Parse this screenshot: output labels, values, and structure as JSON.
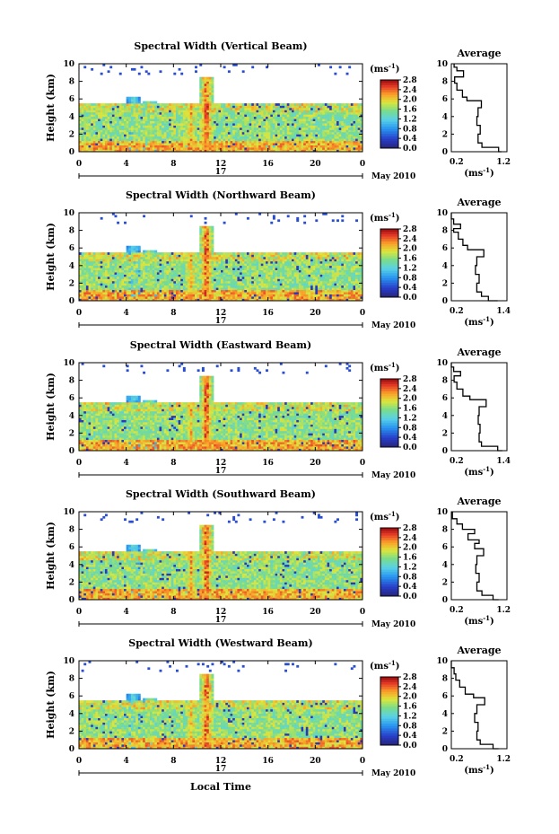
{
  "chart_data": {
    "type": "heatmap",
    "panels": [
      {
        "title": "Spectral Width (Vertical Beam)",
        "avg_xticks": [
          "0.2",
          "1.2"
        ],
        "avg_xlim": [
          0.2,
          1.2
        ],
        "avg_profile": [
          [
            0,
            1.1
          ],
          [
            0.5,
            1.05
          ],
          [
            1.0,
            0.75
          ],
          [
            2.0,
            0.68
          ],
          [
            3.0,
            0.72
          ],
          [
            4.0,
            0.66
          ],
          [
            5.0,
            0.68
          ],
          [
            5.8,
            0.74
          ],
          [
            6.2,
            0.48
          ],
          [
            7.0,
            0.4
          ],
          [
            7.8,
            0.3
          ],
          [
            8.5,
            0.26
          ],
          [
            9.2,
            0.42
          ],
          [
            9.6,
            0.3
          ],
          [
            10,
            0.25
          ]
        ]
      },
      {
        "title": "Spectral Width (Northward Beam)",
        "avg_xticks": [
          "0.2",
          "1.4"
        ],
        "avg_xlim": [
          0.2,
          1.4
        ],
        "avg_profile": [
          [
            0,
            1.2
          ],
          [
            0.5,
            1.0
          ],
          [
            1.0,
            0.85
          ],
          [
            2.0,
            0.75
          ],
          [
            3.0,
            0.8
          ],
          [
            4.0,
            0.72
          ],
          [
            5.0,
            0.75
          ],
          [
            5.8,
            0.9
          ],
          [
            6.3,
            0.55
          ],
          [
            7.0,
            0.45
          ],
          [
            7.8,
            0.35
          ],
          [
            8.2,
            0.25
          ],
          [
            8.7,
            0.4
          ],
          [
            9.3,
            0.25
          ],
          [
            10,
            0.2
          ]
        ]
      },
      {
        "title": "Spectral Width (Eastward Beam)",
        "avg_xticks": [
          "0.2",
          "1.4"
        ],
        "avg_xlim": [
          0.2,
          1.4
        ],
        "avg_profile": [
          [
            0,
            1.3
          ],
          [
            0.5,
            1.2
          ],
          [
            1.0,
            0.85
          ],
          [
            2.0,
            0.8
          ],
          [
            3.0,
            0.82
          ],
          [
            4.0,
            0.78
          ],
          [
            5.0,
            0.8
          ],
          [
            5.8,
            0.95
          ],
          [
            6.2,
            0.6
          ],
          [
            7.0,
            0.45
          ],
          [
            7.8,
            0.32
          ],
          [
            8.5,
            0.26
          ],
          [
            9.0,
            0.4
          ],
          [
            9.5,
            0.25
          ],
          [
            10,
            0.2
          ]
        ]
      },
      {
        "title": "Spectral Width (Southward Beam)",
        "avg_xticks": [
          "0.2",
          "1.2"
        ],
        "avg_xlim": [
          0.2,
          1.2
        ],
        "avg_profile": [
          [
            0,
            1.05
          ],
          [
            0.5,
            0.95
          ],
          [
            1.0,
            0.75
          ],
          [
            2.0,
            0.66
          ],
          [
            3.0,
            0.7
          ],
          [
            4.0,
            0.64
          ],
          [
            5.0,
            0.66
          ],
          [
            5.8,
            0.78
          ],
          [
            6.4,
            0.62
          ],
          [
            6.8,
            0.7
          ],
          [
            7.5,
            0.5
          ],
          [
            8.0,
            0.62
          ],
          [
            8.6,
            0.4
          ],
          [
            9.2,
            0.3
          ],
          [
            10,
            0.22
          ]
        ]
      },
      {
        "title": "Spectral Width (Westward Beam)",
        "avg_xticks": [
          "0.2",
          "1.2"
        ],
        "avg_xlim": [
          0.2,
          1.2
        ],
        "avg_profile": [
          [
            0,
            1.05
          ],
          [
            0.5,
            0.95
          ],
          [
            1.0,
            0.72
          ],
          [
            2.0,
            0.66
          ],
          [
            3.0,
            0.68
          ],
          [
            4.0,
            0.62
          ],
          [
            5.0,
            0.66
          ],
          [
            5.8,
            0.8
          ],
          [
            6.2,
            0.6
          ],
          [
            7.0,
            0.45
          ],
          [
            7.8,
            0.35
          ],
          [
            8.5,
            0.28
          ],
          [
            9.2,
            0.25
          ],
          [
            10,
            0.2
          ]
        ]
      }
    ],
    "ylabel": "Height (km)",
    "yticks": [
      "0",
      "2",
      "4",
      "6",
      "8",
      "10"
    ],
    "ylim": [
      0,
      10
    ],
    "xticks": [
      "0",
      "4",
      "8",
      "12",
      "16",
      "20",
      "0"
    ],
    "xlim": [
      0,
      24
    ],
    "date_label": "17",
    "month_label": "May 2010",
    "xlabel": "Local Time",
    "colorbar_unit": "(ms-1)",
    "colorbar_ticks": [
      "0.0",
      "0.4",
      "0.8",
      "1.2",
      "1.6",
      "2.0",
      "2.4",
      "2.8"
    ],
    "colorbar_range": [
      0,
      2.8
    ],
    "avg_title": "Average",
    "avg_xlabel": "(ms-1)",
    "features": {
      "layer_top_km": 5.5,
      "convective_towers": [
        {
          "center_hour": 4.6,
          "top_km": 6.3,
          "peak_ms": 1.4
        },
        {
          "center_hour": 6.0,
          "top_km": 5.8,
          "peak_ms": 1.8
        },
        {
          "center_hour": 9.5,
          "top_km": 5.5,
          "peak_ms": 2.4
        },
        {
          "center_hour": 10.8,
          "top_km": 8.5,
          "peak_ms": 2.8
        },
        {
          "center_hour": 16.0,
          "top_km": 3.5,
          "peak_ms": 2.0
        }
      ]
    },
    "colors": {
      "accent": "#000000",
      "background": "#ffffff",
      "missing": "#ffffff"
    }
  }
}
